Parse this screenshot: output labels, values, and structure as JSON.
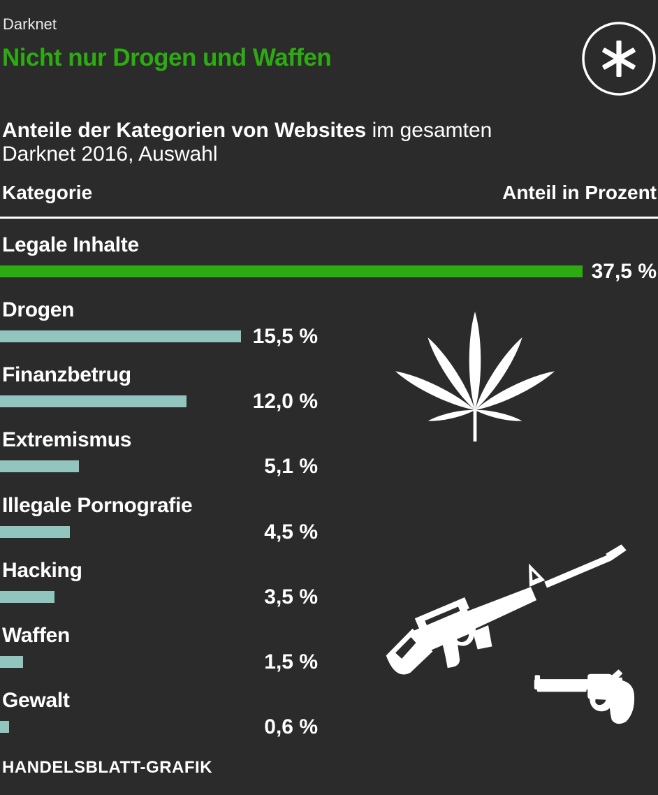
{
  "meta": {
    "background_color": "#2b2b2b",
    "accent_green": "#2dab12",
    "bar_teal": "#92c5be",
    "text_white": "#ffffff"
  },
  "header": {
    "kicker": "Darknet",
    "title": "Nicht nur Drogen und Waffen",
    "badge_icon": "asterisk-in-circle"
  },
  "subtitle": {
    "bold_part": "Anteile der Kategorien von Websites",
    "regular_part": " im gesamten",
    "line2": "Darknet 2016, Auswahl"
  },
  "table_headers": {
    "left": "Kategorie",
    "right": "Anteil in Prozent"
  },
  "chart_data": {
    "type": "bar",
    "orientation": "horizontal",
    "title": "Anteile der Kategorien von Websites im gesamten Darknet 2016, Auswahl",
    "categories": [
      "Legale Inhalte",
      "Drogen",
      "Finanzbetrug",
      "Extremismus",
      "Illegale Pornografie",
      "Hacking",
      "Waffen",
      "Gewalt"
    ],
    "values": [
      37.5,
      15.5,
      12.0,
      5.1,
      4.5,
      3.5,
      1.5,
      0.6
    ],
    "value_labels": [
      "37,5 %",
      "15,5 %",
      "12,0 %",
      "5,1 %",
      "4,5 %",
      "3,5 %",
      "1,5 %",
      "0,6 %"
    ],
    "bar_colors": [
      "#2dab12",
      "#92c5be",
      "#92c5be",
      "#92c5be",
      "#92c5be",
      "#92c5be",
      "#92c5be",
      "#92c5be"
    ],
    "unit": "Prozent",
    "xlim": [
      0,
      42
    ],
    "grid": false,
    "legend": false
  },
  "icons": [
    "cannabis-leaf",
    "assault-rifle",
    "revolver"
  ],
  "footer": {
    "credit": "HANDELSBLATT-GRAFIK"
  }
}
